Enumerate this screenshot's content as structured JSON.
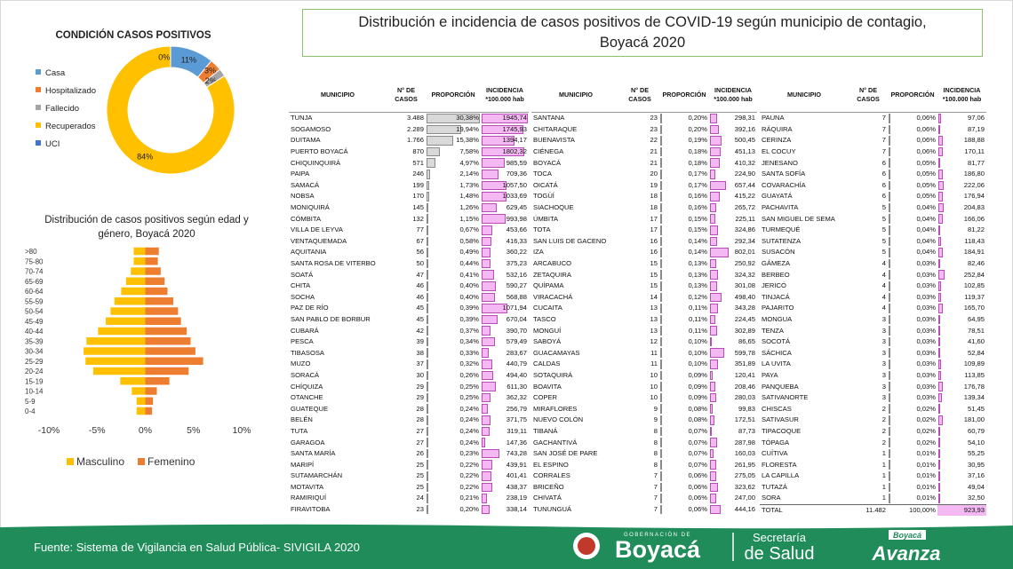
{
  "header": {
    "title": "Distribución e incidencia de casos positivos de COVID-19 según municipio de contagio, Boyacá 2020"
  },
  "chart_data": [
    {
      "type": "donut",
      "title": "CONDICIÓN CASOS POSITIVOS",
      "categories": [
        "Casa",
        "Hospitalizado",
        "Fallecido",
        "Recuperados",
        "UCI"
      ],
      "values": [
        11,
        3,
        2,
        84,
        0
      ],
      "value_labels": [
        "11%",
        "3%",
        "2%",
        "84%",
        "0%"
      ],
      "colors": [
        "#5b9bd5",
        "#ed7d31",
        "#a5a5a5",
        "#ffc000",
        "#4472c4"
      ]
    },
    {
      "type": "hbar",
      "title": "Distribución de casos positivos según edad y género, Boyacá 2020",
      "categories": [
        "0-4",
        "5-9",
        "10-14",
        "15-19",
        "20-24",
        "25-29",
        "30-34",
        "35-39",
        "40-44",
        "45-49",
        "50-54",
        "55-59",
        "60-64",
        "65-69",
        "70-74",
        "75-80",
        ">80"
      ],
      "series": [
        {
          "name": "Masculino",
          "color": "#ffc000",
          "values": [
            -0.9,
            -0.9,
            -1.4,
            -2.6,
            -5.4,
            -6.2,
            -6.4,
            -6.1,
            -4.9,
            -4.1,
            -3.6,
            -3.2,
            -2.5,
            -2.0,
            -1.5,
            -1.2,
            -1.2
          ]
        },
        {
          "name": "Femenino",
          "color": "#ed7d31",
          "values": [
            0.7,
            0.8,
            1.2,
            2.5,
            4.5,
            6.0,
            5.2,
            4.7,
            4.3,
            3.7,
            3.4,
            2.9,
            2.3,
            2.0,
            1.6,
            1.3,
            1.4
          ]
        }
      ],
      "xlim": [
        -10,
        10
      ],
      "xticks": [
        {
          "value": -10,
          "label": "-10%"
        },
        {
          "value": -5,
          "label": "-5%"
        },
        {
          "value": 0,
          "label": "0%"
        },
        {
          "value": 5,
          "label": "5%"
        },
        {
          "value": 10,
          "label": "10%"
        }
      ],
      "legend": "bottom"
    }
  ],
  "table": {
    "columns": [
      "MUNICIPIO",
      "N° DE CASOS",
      "PROPORCIÓN",
      "INCIDENCIA *100.000 hab"
    ],
    "parts": [
      [
        [
          "TUNJA",
          "3.488",
          "30,38%",
          "1945,74"
        ],
        [
          "SOGAMOSO",
          "2.289",
          "19,94%",
          "1745,93"
        ],
        [
          "DUITAMA",
          "1.766",
          "15,38%",
          "1394,17"
        ],
        [
          "PUERTO BOYACÁ",
          "870",
          "7,58%",
          "1802,32"
        ],
        [
          "CHIQUINQUIRÁ",
          "571",
          "4,97%",
          "985,59"
        ],
        [
          "PAIPA",
          "246",
          "2,14%",
          "709,36"
        ],
        [
          "SAMACÁ",
          "199",
          "1,73%",
          "1057,50"
        ],
        [
          "NOBSA",
          "170",
          "1,48%",
          "1033,69"
        ],
        [
          "MONIQUIRÁ",
          "145",
          "1,26%",
          "629,45"
        ],
        [
          "CÓMBITA",
          "132",
          "1,15%",
          "993,98"
        ],
        [
          "VILLA DE LEYVA",
          "77",
          "0,67%",
          "453,66"
        ],
        [
          "VENTAQUEMADA",
          "67",
          "0,58%",
          "416,33"
        ],
        [
          "AQUITANIA",
          "56",
          "0,49%",
          "360,22"
        ],
        [
          "SANTA ROSA DE VITERBO",
          "50",
          "0,44%",
          "375,23"
        ],
        [
          "SOATÁ",
          "47",
          "0,41%",
          "532,16"
        ],
        [
          "CHITA",
          "46",
          "0,40%",
          "590,27"
        ],
        [
          "SOCHA",
          "46",
          "0,40%",
          "568,88"
        ],
        [
          "PAZ DE RÍO",
          "45",
          "0,39%",
          "1071,94"
        ],
        [
          "SAN PABLO DE BORBUR",
          "45",
          "0,39%",
          "670,04"
        ],
        [
          "CUBARÁ",
          "42",
          "0,37%",
          "390,70"
        ],
        [
          "PESCA",
          "39",
          "0,34%",
          "579,49"
        ],
        [
          "TIBASOSA",
          "38",
          "0,33%",
          "283,67"
        ],
        [
          "MUZO",
          "37",
          "0,32%",
          "440,79"
        ],
        [
          "SORACÁ",
          "30",
          "0,26%",
          "494,40"
        ],
        [
          "CHÍQUIZA",
          "29",
          "0,25%",
          "611,30"
        ],
        [
          "OTANCHE",
          "29",
          "0,25%",
          "362,32"
        ],
        [
          "GUATEQUE",
          "28",
          "0,24%",
          "256,79"
        ],
        [
          "BELÉN",
          "28",
          "0,24%",
          "371,75"
        ],
        [
          "TUTA",
          "27",
          "0,24%",
          "319,11"
        ],
        [
          "GARAGOA",
          "27",
          "0,24%",
          "147,36"
        ],
        [
          "SANTA MARÍA",
          "26",
          "0,23%",
          "743,28"
        ],
        [
          "MARIPÍ",
          "25",
          "0,22%",
          "439,91"
        ],
        [
          "SUTAMARCHÁN",
          "25",
          "0,22%",
          "401,41"
        ],
        [
          "MOTAVITA",
          "25",
          "0,22%",
          "438,37"
        ],
        [
          "RAMIRIQUÍ",
          "24",
          "0,21%",
          "238,19"
        ],
        [
          "FIRAVITOBA",
          "23",
          "0,20%",
          "338,14"
        ]
      ],
      [
        [
          "SANTANA",
          "23",
          "0,20%",
          "298,31"
        ],
        [
          "CHITARAQUE",
          "23",
          "0,20%",
          "392,16"
        ],
        [
          "BUENAVISTA",
          "22",
          "0,19%",
          "500,45"
        ],
        [
          "CIÉNEGA",
          "21",
          "0,18%",
          "451,13"
        ],
        [
          "BOYACÁ",
          "21",
          "0,18%",
          "410,32"
        ],
        [
          "TOCA",
          "20",
          "0,17%",
          "224,90"
        ],
        [
          "OICATÁ",
          "19",
          "0,17%",
          "657,44"
        ],
        [
          "TOGÜÍ",
          "18",
          "0,16%",
          "415,22"
        ],
        [
          "SIACHOQUE",
          "18",
          "0,16%",
          "265,72"
        ],
        [
          "ÚMBITA",
          "17",
          "0,15%",
          "225,11"
        ],
        [
          "TOTA",
          "17",
          "0,15%",
          "324,86"
        ],
        [
          "SAN LUIS DE GACENO",
          "16",
          "0,14%",
          "292,34"
        ],
        [
          "IZA",
          "16",
          "0,14%",
          "802,01"
        ],
        [
          "ARCABUCO",
          "15",
          "0,13%",
          "250,92"
        ],
        [
          "ZETAQUIRA",
          "15",
          "0,13%",
          "324,32"
        ],
        [
          "QUÍPAMA",
          "15",
          "0,13%",
          "301,08"
        ],
        [
          "VIRACACHÁ",
          "14",
          "0,12%",
          "498,40"
        ],
        [
          "CUCAITA",
          "13",
          "0,11%",
          "343,28"
        ],
        [
          "TASCO",
          "13",
          "0,11%",
          "224,45"
        ],
        [
          "MONGUÍ",
          "13",
          "0,11%",
          "302,89"
        ],
        [
          "SABOYÁ",
          "12",
          "0,10%",
          "86,65"
        ],
        [
          "GUACAMAYAS",
          "11",
          "0,10%",
          "599,78"
        ],
        [
          "CALDAS",
          "11",
          "0,10%",
          "351,89"
        ],
        [
          "SOTAQUIRÁ",
          "10",
          "0,09%",
          "120,41"
        ],
        [
          "BOAVITA",
          "10",
          "0,09%",
          "208,46"
        ],
        [
          "COPER",
          "10",
          "0,09%",
          "280,03"
        ],
        [
          "MIRAFLORES",
          "9",
          "0,08%",
          "99,83"
        ],
        [
          "NUEVO COLÓN",
          "9",
          "0,08%",
          "172,51"
        ],
        [
          "TIBANÁ",
          "8",
          "0,07%",
          "87,73"
        ],
        [
          "GACHANTIVÁ",
          "8",
          "0,07%",
          "287,98"
        ],
        [
          "SAN JOSÉ DE PARE",
          "8",
          "0,07%",
          "160,03"
        ],
        [
          "EL ESPINO",
          "8",
          "0,07%",
          "261,95"
        ],
        [
          "CORRALES",
          "7",
          "0,06%",
          "275,05"
        ],
        [
          "BRICEÑO",
          "7",
          "0,06%",
          "323,62"
        ],
        [
          "CHIVATÁ",
          "7",
          "0,06%",
          "247,00"
        ],
        [
          "TUNUNGUÁ",
          "7",
          "0,06%",
          "444,16"
        ]
      ],
      [
        [
          "PAUNA",
          "7",
          "0,06%",
          "97,06"
        ],
        [
          "RÁQUIRA",
          "7",
          "0,06%",
          "87,19"
        ],
        [
          "CERINZA",
          "7",
          "0,06%",
          "188,88"
        ],
        [
          "EL COCUY",
          "7",
          "0,06%",
          "170,11"
        ],
        [
          "JENESANO",
          "6",
          "0,05%",
          "81,77"
        ],
        [
          "SANTA SOFÍA",
          "6",
          "0,05%",
          "186,80"
        ],
        [
          "COVARACHÍA",
          "6",
          "0,05%",
          "222,06"
        ],
        [
          "GUAYATÁ",
          "6",
          "0,05%",
          "176,94"
        ],
        [
          "PACHAVITA",
          "5",
          "0,04%",
          "204,83"
        ],
        [
          "SAN MIGUEL DE SEMA",
          "5",
          "0,04%",
          "166,06"
        ],
        [
          "TURMEQUÉ",
          "5",
          "0,04%",
          "81,22"
        ],
        [
          "SUTATENZA",
          "5",
          "0,04%",
          "118,43"
        ],
        [
          "SUSACÓN",
          "5",
          "0,04%",
          "184,91"
        ],
        [
          "GÁMEZA",
          "4",
          "0,03%",
          "82,46"
        ],
        [
          "BERBEO",
          "4",
          "0,03%",
          "252,84"
        ],
        [
          "JERICÓ",
          "4",
          "0,03%",
          "102,85"
        ],
        [
          "TINJACÁ",
          "4",
          "0,03%",
          "119,37"
        ],
        [
          "PAJARITO",
          "4",
          "0,03%",
          "165,70"
        ],
        [
          "MONGUA",
          "3",
          "0,03%",
          "64,95"
        ],
        [
          "TENZA",
          "3",
          "0,03%",
          "78,51"
        ],
        [
          "SOCOTÁ",
          "3",
          "0,03%",
          "41,60"
        ],
        [
          "SÁCHICA",
          "3",
          "0,03%",
          "52,84"
        ],
        [
          "LA UVITA",
          "3",
          "0,03%",
          "109,89"
        ],
        [
          "PAYA",
          "3",
          "0,03%",
          "113,85"
        ],
        [
          "PANQUEBA",
          "3",
          "0,03%",
          "176,78"
        ],
        [
          "SATIVANORTE",
          "3",
          "0,03%",
          "139,34"
        ],
        [
          "CHISCAS",
          "2",
          "0,02%",
          "51,45"
        ],
        [
          "SATIVASUR",
          "2",
          "0,02%",
          "181,00"
        ],
        [
          "TIPACOQUE",
          "2",
          "0,02%",
          "60,79"
        ],
        [
          "TÓPAGA",
          "2",
          "0,02%",
          "54,10"
        ],
        [
          "CUÍTIVA",
          "1",
          "0,01%",
          "55,25"
        ],
        [
          "FLORESTA",
          "1",
          "0,01%",
          "30,95"
        ],
        [
          "LA CAPILLA",
          "1",
          "0,01%",
          "37,16"
        ],
        [
          "TUTAZÁ",
          "1",
          "0,01%",
          "49,04"
        ],
        [
          "SORA",
          "1",
          "0,01%",
          "32,50"
        ]
      ]
    ],
    "total": [
      "TOTAL",
      "11.482",
      "100,00%",
      "923,93"
    ]
  },
  "footer": {
    "source": "Fuente: Sistema de Vigilancia en Salud Pública- SIVIGILA 2020",
    "gov_small": "GOBERNACIÓN DE",
    "gov": "Boyacá",
    "sec1": "Secretaría",
    "sec2": "de Salud",
    "brand_small": "Boyacá",
    "brand": "Avanza"
  }
}
